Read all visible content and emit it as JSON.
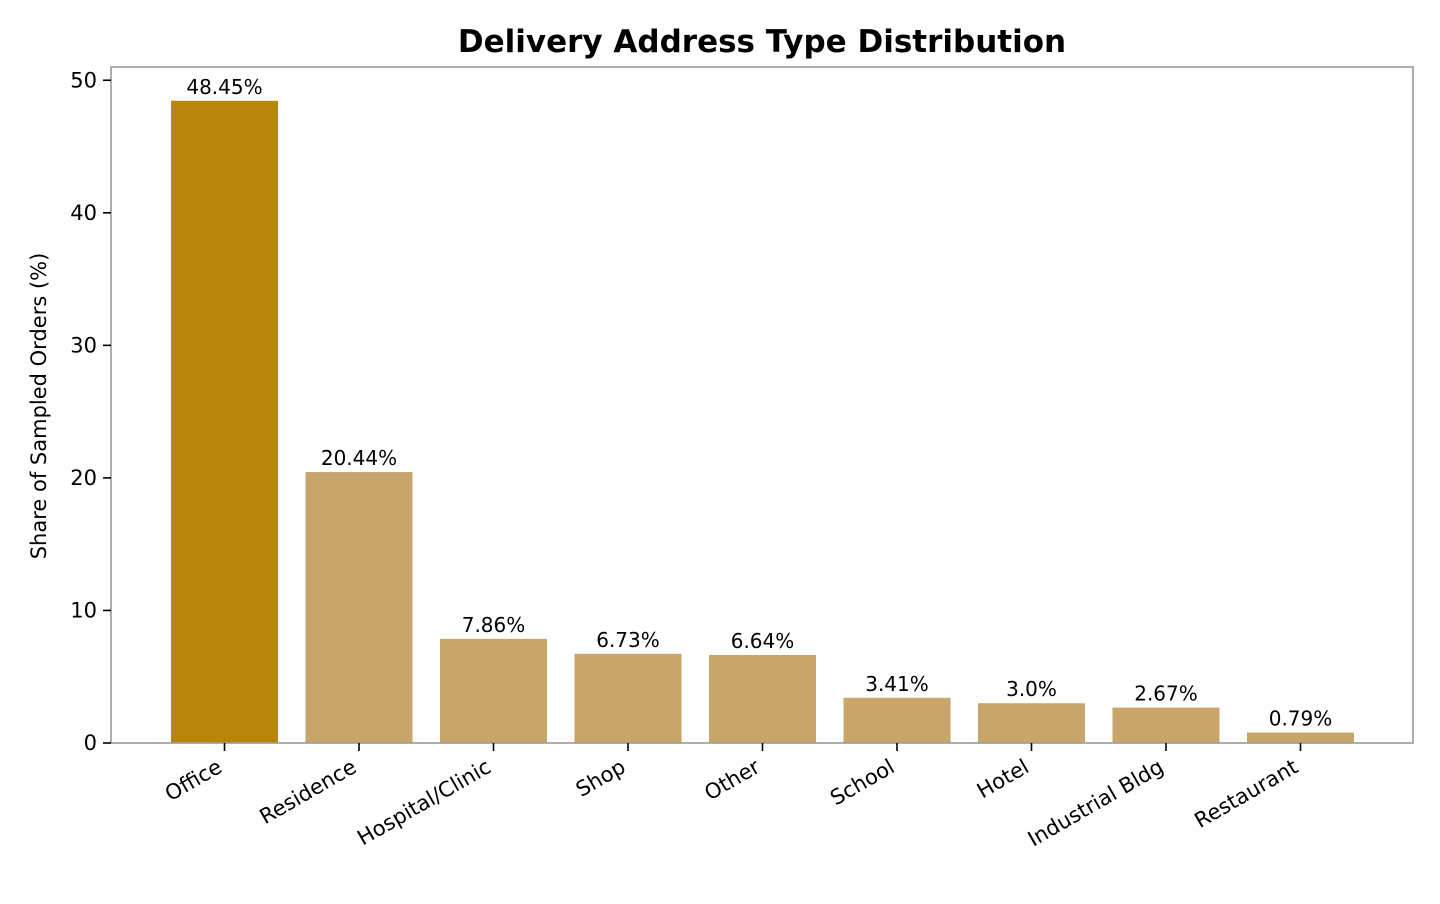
{
  "chart_data": {
    "type": "bar",
    "title": "Delivery Address Type Distribution",
    "xlabel": "",
    "ylabel": "Share of Sampled Orders (%)",
    "categories": [
      "Office",
      "Residence",
      "Hospital/Clinic",
      "Shop",
      "Other",
      "School",
      "Hotel",
      "Industrial Bldg",
      "Restaurant"
    ],
    "values": [
      48.45,
      20.44,
      7.86,
      6.73,
      6.64,
      3.41,
      3.0,
      2.67,
      0.79
    ],
    "value_labels": [
      "48.45%",
      "20.44%",
      "7.86%",
      "6.73%",
      "6.64%",
      "3.41%",
      "3.0%",
      "2.67%",
      "0.79%"
    ],
    "ylim": [
      0,
      51
    ],
    "yticks": [
      0,
      10,
      20,
      30,
      40,
      50
    ],
    "grid": false,
    "legend": "none",
    "colors": {
      "highlight": "#b8860b",
      "default": "#c8a66b",
      "axis": "#9a9a9a",
      "tick": "#000000"
    },
    "highlight_index": 0
  }
}
